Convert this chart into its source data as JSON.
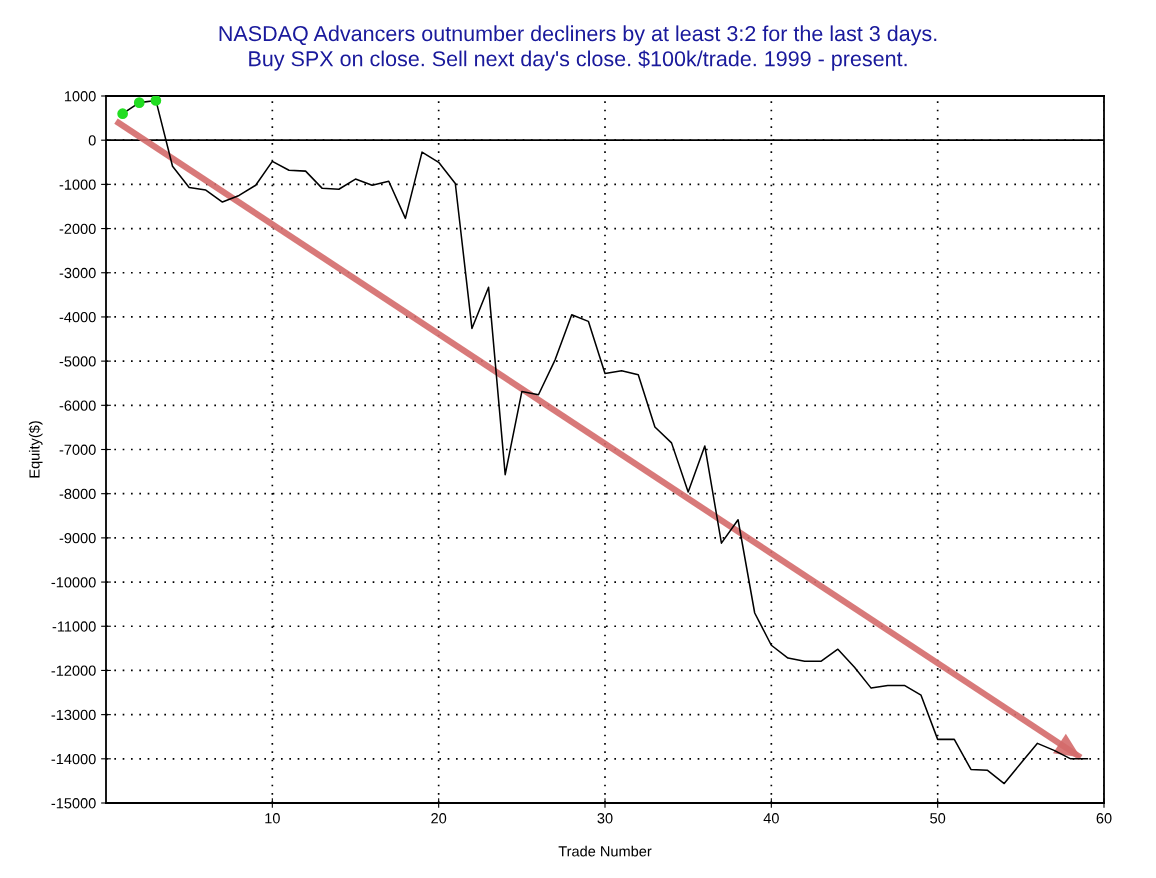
{
  "chart_data": {
    "type": "line",
    "title": "NASDAQ Advancers outnumber decliners by at least 3:2 for the last 3 days.\nBuy SPX on close. Sell next day's close. $100k/trade. 1999 - present.",
    "xlabel": "Trade Number",
    "ylabel": "Equity($)",
    "series": [
      {
        "color": "#000000",
        "x": [
          1,
          2,
          3,
          4,
          5,
          6,
          7,
          8,
          9,
          10,
          11,
          12,
          13,
          14,
          15,
          16,
          17,
          18,
          19,
          20,
          21,
          22,
          23,
          24,
          25,
          26,
          27,
          28,
          29,
          30,
          31,
          32,
          33,
          34,
          35,
          36,
          37,
          38,
          39,
          40,
          41,
          42,
          43,
          44,
          45,
          46,
          47,
          48,
          49,
          50,
          51,
          52,
          53,
          54,
          55,
          56,
          57,
          58,
          59
        ],
        "values": [
          600,
          850,
          900,
          -590,
          -1070,
          -1130,
          -1400,
          -1250,
          -1020,
          -480,
          -680,
          -700,
          -1090,
          -1110,
          -880,
          -1020,
          -930,
          -1770,
          -270,
          -500,
          -980,
          -4260,
          -3330,
          -7570,
          -5690,
          -5760,
          -4970,
          -3950,
          -4100,
          -5280,
          -5220,
          -5310,
          -6490,
          -6850,
          -7960,
          -6920,
          -9120,
          -8590,
          -10700,
          -11430,
          -11720,
          -11790,
          -11790,
          -11520,
          -11930,
          -12400,
          -12340,
          -12340,
          -12560,
          -13560,
          -13560,
          -14240,
          -14260,
          -14560,
          -14100,
          -13650,
          -13810,
          -14000,
          -14000
        ]
      },
      {
        "type": "scatter",
        "color": "#22dd22",
        "marker": "circle",
        "x": [
          1,
          2,
          3
        ],
        "values": [
          600,
          850,
          900
        ]
      },
      {
        "type": "line",
        "color": "#d46a6a",
        "x": [
          0.6,
          58.6
        ],
        "values": [
          430,
          -13970
        ]
      }
    ],
    "xlim": [
      0,
      60
    ],
    "xticks": [
      10,
      20,
      30,
      40,
      50,
      60
    ],
    "ylim": [
      -15000,
      1000
    ],
    "yticks": [
      -15000,
      -14000,
      -13000,
      -12000,
      -11000,
      -10000,
      -9000,
      -8000,
      -7000,
      -6000,
      -5000,
      -4000,
      -3000,
      -2000,
      -1000,
      0,
      1000
    ],
    "grid": true,
    "line_style": "solid",
    "legend": false
  }
}
